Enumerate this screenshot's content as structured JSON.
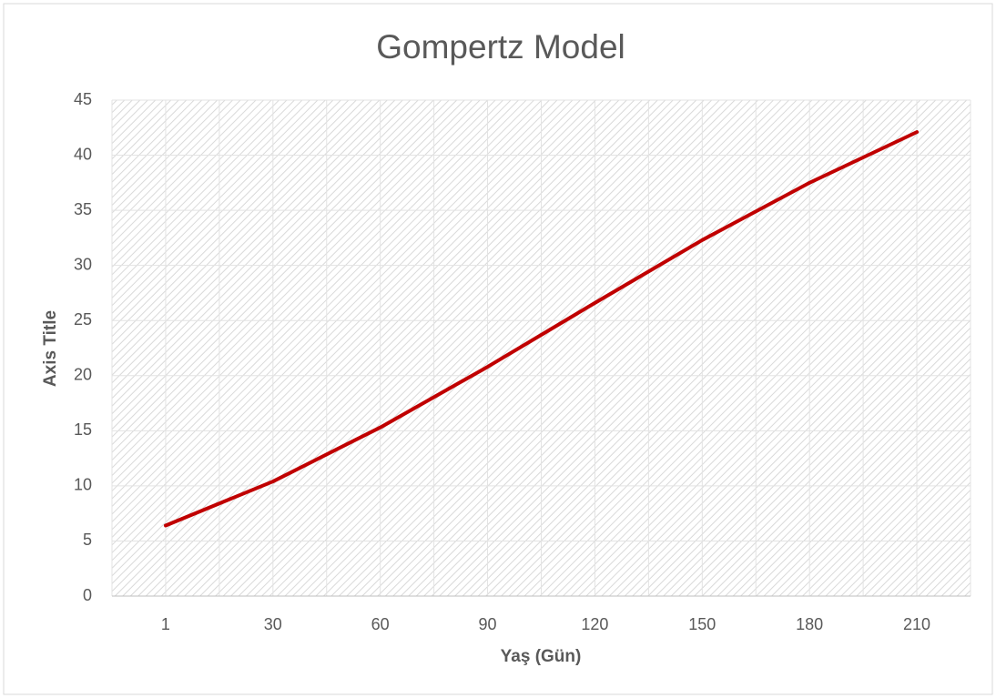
{
  "chart_data": {
    "type": "line",
    "title": "Gompertz Model",
    "x_label": "Yaş (Gün)",
    "y_label": "Axis Title",
    "categories": [
      "1",
      "30",
      "60",
      "90",
      "120",
      "150",
      "180",
      "210"
    ],
    "series": [
      {
        "name": "Gompertz Model",
        "color": "#c00000",
        "values": [
          6.4,
          10.4,
          15.3,
          20.8,
          26.6,
          32.3,
          37.5,
          42.1
        ]
      }
    ],
    "ylim": [
      0,
      45
    ],
    "yticks": [
      0,
      5,
      10,
      15,
      20,
      25,
      30,
      35,
      40,
      45
    ],
    "grid": true
  }
}
